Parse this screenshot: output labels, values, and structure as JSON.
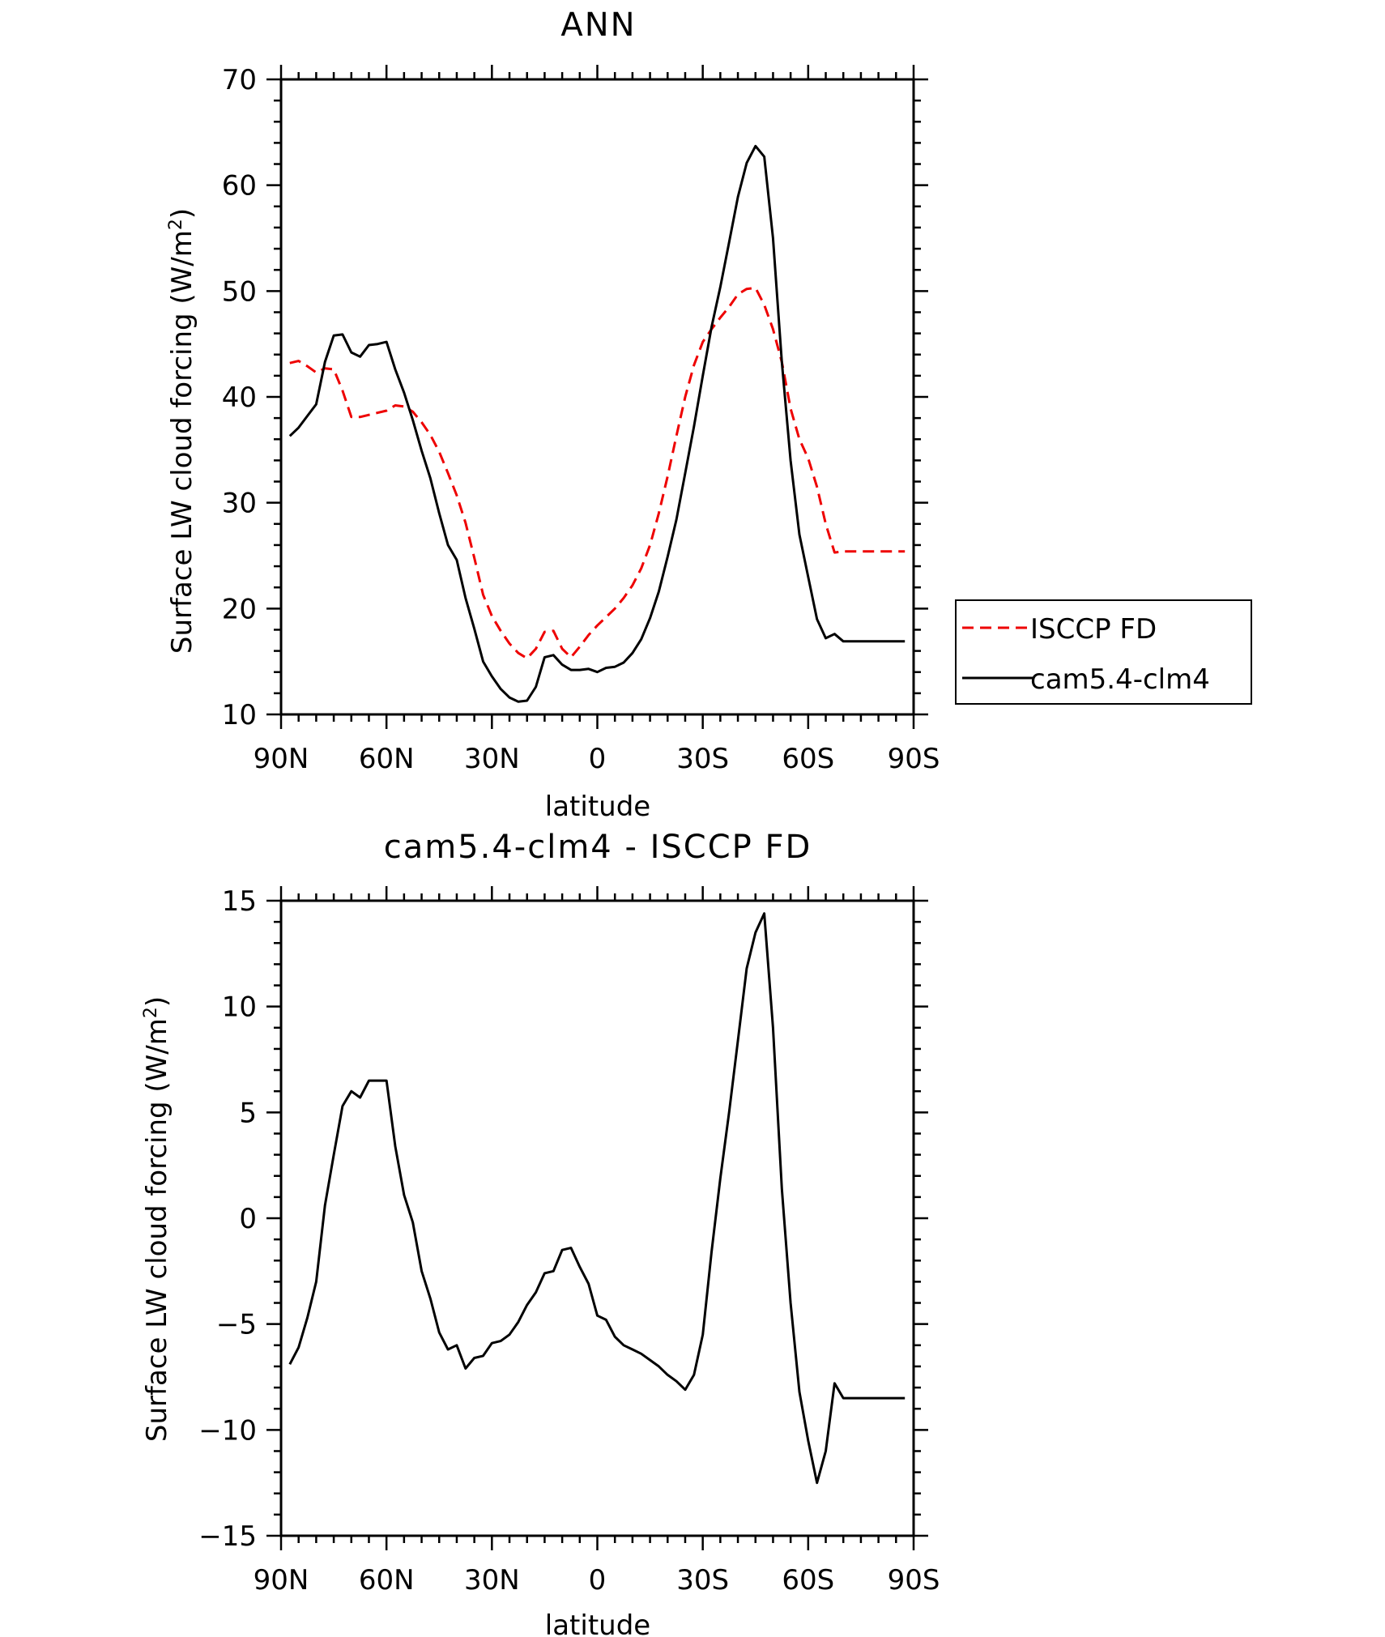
{
  "chart_data": [
    {
      "type": "line",
      "title": "ANN",
      "xlabel": "latitude",
      "ylabel": "Surface LW cloud forcing (W/m",
      "ylabel_sup": "2",
      "ylabel_end": ")",
      "x_ticks": [
        "90N",
        "60N",
        "30N",
        "0",
        "30S",
        "60S",
        "90S"
      ],
      "y_ticks": [
        "10",
        "20",
        "30",
        "40",
        "50",
        "60",
        "70"
      ],
      "xlim": [
        90,
        -90
      ],
      "ylim": [
        10,
        70
      ],
      "legend": {
        "position": "right"
      },
      "series": [
        {
          "name": "ISCCP FD",
          "color": "#ee0000",
          "style": "dashed",
          "x": [
            87.5,
            85,
            82.5,
            80,
            77.5,
            75,
            72.5,
            70,
            67.5,
            65,
            62.5,
            60,
            57.5,
            55,
            52.5,
            50,
            47.5,
            45,
            42.5,
            40,
            37.5,
            35,
            32.5,
            30,
            27.5,
            25,
            22.5,
            20,
            17.5,
            15,
            12.5,
            10,
            7.5,
            5,
            2.5,
            0,
            -2.5,
            -5,
            -7.5,
            -10,
            -12.5,
            -15,
            -17.5,
            -20,
            -22.5,
            -25,
            -27.5,
            -30,
            -32.5,
            -35,
            -37.5,
            -40,
            -42.5,
            -45,
            -47.5,
            -50,
            -52.5,
            -55,
            -57.5,
            -60,
            -62.5,
            -65,
            -67.5,
            -70,
            -72.5,
            -75,
            -77.5,
            -80,
            -82.5,
            -85,
            -87.5
          ],
          "y": [
            43.2,
            43.4,
            42.9,
            42.3,
            42.7,
            42.6,
            40.6,
            38.1,
            38.1,
            38.3,
            38.5,
            38.7,
            39.2,
            39.1,
            38.6,
            37.6,
            36.4,
            34.8,
            32.8,
            30.7,
            28.1,
            24.8,
            21.3,
            19.3,
            17.9,
            16.7,
            15.8,
            15.3,
            16.2,
            17.8,
            17.9,
            16.2,
            15.4,
            16.4,
            17.5,
            18.4,
            19.2,
            20.0,
            21.0,
            22.2,
            23.8,
            26.0,
            29.0,
            32.5,
            36.3,
            40.0,
            43.0,
            45.2,
            46.4,
            47.5,
            48.5,
            49.7,
            50.2,
            50.3,
            48.7,
            46.4,
            43.3,
            38.9,
            36.0,
            34.2,
            31.5,
            28.0,
            25.3,
            25.4,
            25.4,
            25.4,
            25.4,
            25.4,
            25.4,
            25.4,
            25.4
          ]
        },
        {
          "name": "cam5.4-clm4",
          "color": "#000000",
          "style": "solid",
          "x": [
            87.5,
            85,
            82.5,
            80,
            77.5,
            75,
            72.5,
            70,
            67.5,
            65,
            62.5,
            60,
            57.5,
            55,
            52.5,
            50,
            47.5,
            45,
            42.5,
            40,
            37.5,
            35,
            32.5,
            30,
            27.5,
            25,
            22.5,
            20,
            17.5,
            15,
            12.5,
            10,
            7.5,
            5,
            2.5,
            0,
            -2.5,
            -5,
            -7.5,
            -10,
            -12.5,
            -15,
            -17.5,
            -20,
            -22.5,
            -25,
            -27.5,
            -30,
            -32.5,
            -35,
            -37.5,
            -40,
            -42.5,
            -45,
            -47.5,
            -50,
            -52.5,
            -55,
            -57.5,
            -60,
            -62.5,
            -65,
            -67.5,
            -70,
            -72.5,
            -75,
            -77.5,
            -80,
            -82.5,
            -85,
            -87.5
          ],
          "y": [
            36.3,
            37.1,
            38.2,
            39.3,
            43.3,
            45.8,
            45.9,
            44.2,
            43.8,
            44.9,
            45.0,
            45.2,
            42.6,
            40.4,
            37.8,
            34.9,
            32.3,
            29.0,
            26.0,
            24.6,
            21.0,
            18.1,
            15.0,
            13.6,
            12.4,
            11.6,
            11.2,
            11.3,
            12.6,
            15.4,
            15.6,
            14.7,
            14.2,
            14.2,
            14.3,
            14.0,
            14.4,
            14.5,
            14.9,
            15.8,
            17.1,
            19.1,
            21.6,
            24.9,
            28.4,
            32.8,
            37.2,
            42.0,
            46.6,
            50.4,
            54.6,
            58.9,
            62.1,
            63.7,
            62.7,
            55.0,
            43.3,
            34.0,
            27.0,
            23.0,
            19.0,
            17.2,
            17.6,
            16.9,
            16.9,
            16.9,
            16.9,
            16.9,
            16.9,
            16.9,
            16.9
          ]
        }
      ]
    },
    {
      "type": "line",
      "title": "cam5.4-clm4 - ISCCP FD",
      "xlabel": "latitude",
      "ylabel": "Surface LW cloud forcing (W/m",
      "ylabel_sup": "2",
      "ylabel_end": ")",
      "x_ticks": [
        "90N",
        "60N",
        "30N",
        "0",
        "30S",
        "60S",
        "90S"
      ],
      "y_ticks": [
        "15",
        "10",
        "5",
        "0",
        "−5",
        "−10",
        "−15"
      ],
      "xlim": [
        90,
        -90
      ],
      "ylim": [
        -15,
        15
      ],
      "series": [
        {
          "color": "#000000",
          "style": "solid",
          "x": [
            87.5,
            85,
            82.5,
            80,
            77.5,
            75,
            72.5,
            70,
            67.5,
            65,
            62.5,
            60,
            57.5,
            55,
            52.5,
            50,
            47.5,
            45,
            42.5,
            40,
            37.5,
            35,
            32.5,
            30,
            27.5,
            25,
            22.5,
            20,
            17.5,
            15,
            12.5,
            10,
            7.5,
            5,
            2.5,
            0,
            -2.5,
            -5,
            -7.5,
            -10,
            -12.5,
            -15,
            -17.5,
            -20,
            -22.5,
            -25,
            -27.5,
            -30,
            -32.5,
            -35,
            -37.5,
            -40,
            -42.5,
            -45,
            -47.5,
            -50,
            -52.5,
            -55,
            -57.5,
            -60,
            -62.5,
            -65,
            -67.5,
            -70,
            -72.5,
            -75,
            -77.5,
            -80,
            -82.5,
            -85,
            -87.5
          ],
          "y": [
            -6.9,
            -6.1,
            -4.7,
            -3.0,
            0.6,
            3.0,
            5.3,
            6.0,
            5.7,
            6.5,
            6.5,
            6.5,
            3.4,
            1.1,
            -0.2,
            -2.5,
            -3.8,
            -5.4,
            -6.2,
            -6.0,
            -7.1,
            -6.6,
            -6.5,
            -5.9,
            -5.8,
            -5.5,
            -4.9,
            -4.1,
            -3.5,
            -2.6,
            -2.5,
            -1.5,
            -1.4,
            -2.3,
            -3.1,
            -4.6,
            -4.8,
            -5.6,
            -6.0,
            -6.2,
            -6.4,
            -6.7,
            -7.0,
            -7.4,
            -7.7,
            -8.1,
            -7.4,
            -5.5,
            -1.6,
            1.9,
            5.0,
            8.4,
            11.8,
            13.5,
            14.4,
            9.0,
            1.4,
            -4.0,
            -8.2,
            -10.5,
            -12.5,
            -11.0,
            -7.8,
            -8.5,
            -8.5,
            -8.5,
            -8.5,
            -8.5,
            -8.5,
            -8.5,
            -8.5
          ]
        }
      ]
    }
  ]
}
